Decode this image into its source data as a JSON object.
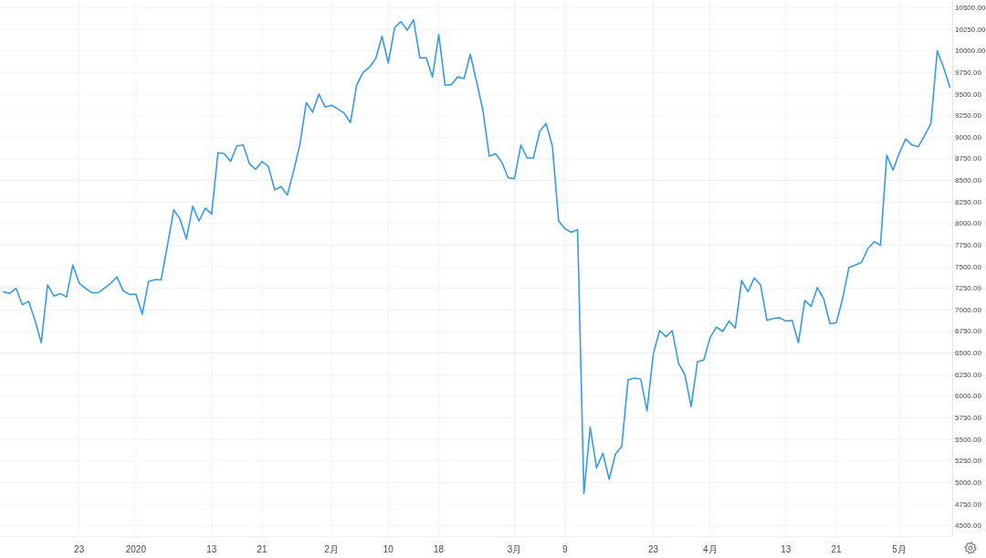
{
  "chart_data": {
    "type": "line",
    "x": [
      "2019-12-11",
      "2019-12-12",
      "2019-12-13",
      "2019-12-14",
      "2019-12-15",
      "2019-12-16",
      "2019-12-17",
      "2019-12-18",
      "2019-12-19",
      "2019-12-20",
      "2019-12-21",
      "2019-12-22",
      "2019-12-23",
      "2019-12-24",
      "2019-12-25",
      "2019-12-26",
      "2019-12-27",
      "2019-12-28",
      "2019-12-29",
      "2019-12-30",
      "2019-12-31",
      "2020-01-01",
      "2020-01-02",
      "2020-01-03",
      "2020-01-04",
      "2020-01-05",
      "2020-01-06",
      "2020-01-07",
      "2020-01-08",
      "2020-01-09",
      "2020-01-10",
      "2020-01-11",
      "2020-01-12",
      "2020-01-13",
      "2020-01-14",
      "2020-01-15",
      "2020-01-16",
      "2020-01-17",
      "2020-01-18",
      "2020-01-19",
      "2020-01-20",
      "2020-01-21",
      "2020-01-22",
      "2020-01-23",
      "2020-01-24",
      "2020-01-25",
      "2020-01-26",
      "2020-01-27",
      "2020-01-28",
      "2020-01-29",
      "2020-01-30",
      "2020-01-31",
      "2020-02-01",
      "2020-02-02",
      "2020-02-03",
      "2020-02-04",
      "2020-02-05",
      "2020-02-06",
      "2020-02-07",
      "2020-02-08",
      "2020-02-09",
      "2020-02-10",
      "2020-02-11",
      "2020-02-12",
      "2020-02-13",
      "2020-02-14",
      "2020-02-15",
      "2020-02-16",
      "2020-02-17",
      "2020-02-18",
      "2020-02-19",
      "2020-02-20",
      "2020-02-21",
      "2020-02-22",
      "2020-02-23",
      "2020-02-24",
      "2020-02-25",
      "2020-02-26",
      "2020-02-27",
      "2020-02-28",
      "2020-02-29",
      "2020-03-01",
      "2020-03-02",
      "2020-03-03",
      "2020-03-04",
      "2020-03-05",
      "2020-03-06",
      "2020-03-07",
      "2020-03-08",
      "2020-03-09",
      "2020-03-10",
      "2020-03-11",
      "2020-03-12",
      "2020-03-13",
      "2020-03-14",
      "2020-03-15",
      "2020-03-16",
      "2020-03-17",
      "2020-03-18",
      "2020-03-19",
      "2020-03-20",
      "2020-03-21",
      "2020-03-22",
      "2020-03-23",
      "2020-03-24",
      "2020-03-25",
      "2020-03-26",
      "2020-03-27",
      "2020-03-28",
      "2020-03-29",
      "2020-03-30",
      "2020-03-31",
      "2020-04-01",
      "2020-04-02",
      "2020-04-03",
      "2020-04-04",
      "2020-04-05",
      "2020-04-06",
      "2020-04-07",
      "2020-04-08",
      "2020-04-09",
      "2020-04-10",
      "2020-04-11",
      "2020-04-12",
      "2020-04-13",
      "2020-04-14",
      "2020-04-15",
      "2020-04-16",
      "2020-04-17",
      "2020-04-18",
      "2020-04-19",
      "2020-04-20",
      "2020-04-21",
      "2020-04-22",
      "2020-04-23",
      "2020-04-24",
      "2020-04-25",
      "2020-04-26",
      "2020-04-27",
      "2020-04-28",
      "2020-04-29",
      "2020-04-30",
      "2020-05-01",
      "2020-05-02",
      "2020-05-03",
      "2020-05-04",
      "2020-05-05",
      "2020-05-06",
      "2020-05-07",
      "2020-05-08",
      "2020-05-09"
    ],
    "values": [
      7210,
      7190,
      7250,
      7060,
      7100,
      6880,
      6620,
      7290,
      7160,
      7190,
      7150,
      7520,
      7310,
      7250,
      7200,
      7200,
      7250,
      7310,
      7380,
      7220,
      7180,
      7180,
      6950,
      7330,
      7350,
      7350,
      7750,
      8160,
      8050,
      7820,
      8200,
      8030,
      8180,
      8110,
      8820,
      8810,
      8720,
      8900,
      8910,
      8690,
      8630,
      8720,
      8660,
      8390,
      8430,
      8330,
      8610,
      8920,
      9400,
      9290,
      9500,
      9350,
      9370,
      9330,
      9280,
      9170,
      9610,
      9750,
      9810,
      9910,
      10170,
      9860,
      10270,
      10340,
      10240,
      10360,
      9920,
      9920,
      9700,
      10190,
      9600,
      9610,
      9700,
      9680,
      9960,
      9640,
      9310,
      8780,
      8810,
      8710,
      8530,
      8520,
      8910,
      8760,
      8760,
      9070,
      9160,
      8900,
      8030,
      7940,
      7900,
      7930,
      4870,
      5640,
      5170,
      5340,
      5040,
      5330,
      5420,
      6190,
      6210,
      6200,
      5830,
      6490,
      6760,
      6690,
      6760,
      6380,
      6250,
      5880,
      6400,
      6420,
      6680,
      6800,
      6750,
      6870,
      6790,
      7340,
      7210,
      7370,
      7290,
      6880,
      6900,
      6910,
      6870,
      6880,
      6620,
      7110,
      7040,
      7260,
      7130,
      6840,
      6850,
      7130,
      7490,
      7520,
      7550,
      7710,
      7790,
      7750,
      8790,
      8620,
      8820,
      8980,
      8910,
      8890,
      9020,
      9160,
      10000,
      9810,
      9580
    ],
    "color": "#3a9ae2",
    "xlim": [
      "2019-12-10T11:00",
      "2020-05-09T09:00"
    ],
    "xticks": [
      {
        "value": "2019-12-23",
        "label": "23"
      },
      {
        "value": "2020-01-01",
        "label": "2020"
      },
      {
        "value": "2020-01-13",
        "label": "13"
      },
      {
        "value": "2020-01-21",
        "label": "21"
      },
      {
        "value": "2020-02-01",
        "label": "2月"
      },
      {
        "value": "2020-02-10",
        "label": "10"
      },
      {
        "value": "2020-02-18",
        "label": "18"
      },
      {
        "value": "2020-03-01",
        "label": "3月"
      },
      {
        "value": "2020-03-09",
        "label": "9"
      },
      {
        "value": "2020-03-23",
        "label": "23"
      },
      {
        "value": "2020-04-01",
        "label": "4月"
      },
      {
        "value": "2020-04-13",
        "label": "13"
      },
      {
        "value": "2020-04-21",
        "label": "21"
      },
      {
        "value": "2020-05-01",
        "label": "5月"
      }
    ],
    "ylim": [
      4380,
      10590
    ],
    "yticks": [
      {
        "value": 4500,
        "label": "4500.00"
      },
      {
        "value": 4750,
        "label": "4750.00"
      },
      {
        "value": 5000,
        "label": "5000.00"
      },
      {
        "value": 5250,
        "label": "5250.00"
      },
      {
        "value": 5500,
        "label": "5500.00"
      },
      {
        "value": 5750,
        "label": "5750.00"
      },
      {
        "value": 6000,
        "label": "6000.00"
      },
      {
        "value": 6250,
        "label": "6250.00"
      },
      {
        "value": 6500,
        "label": "6500.00"
      },
      {
        "value": 6750,
        "label": "6750.00"
      },
      {
        "value": 7000,
        "label": "7000.00"
      },
      {
        "value": 7250,
        "label": "7250.00"
      },
      {
        "value": 7500,
        "label": "7500.00"
      },
      {
        "value": 7750,
        "label": "7750.00"
      },
      {
        "value": 8000,
        "label": "8000.00"
      },
      {
        "value": 8250,
        "label": "8250.00"
      },
      {
        "value": 8500,
        "label": "8500.00"
      },
      {
        "value": 8750,
        "label": "8750.00"
      },
      {
        "value": 9000,
        "label": "9000.00"
      },
      {
        "value": 9250,
        "label": "9250.00"
      },
      {
        "value": 9500,
        "label": "9500.00"
      },
      {
        "value": 9750,
        "label": "9750.00"
      },
      {
        "value": 10000,
        "label": "10000.00"
      },
      {
        "value": 10250,
        "label": "10250.00"
      },
      {
        "value": 10500,
        "label": "10500.00"
      }
    ],
    "grid": true
  }
}
